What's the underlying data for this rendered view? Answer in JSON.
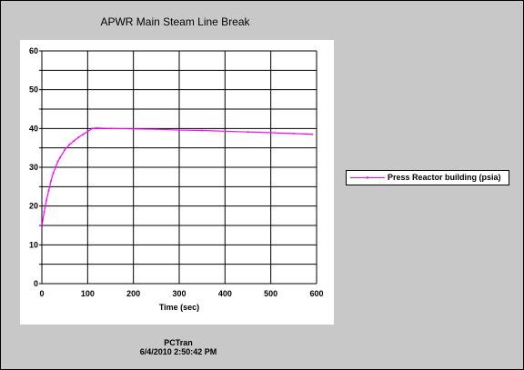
{
  "chart_data": {
    "type": "line",
    "title": "APWR Main Steam Line Break",
    "xlabel": "Time (sec)",
    "ylabel": "",
    "xlim": [
      0,
      600
    ],
    "ylim": [
      0,
      60
    ],
    "x_ticks": [
      "0",
      "100",
      "200",
      "300",
      "400",
      "500",
      "600"
    ],
    "y_ticks": [
      "0",
      "10",
      "20",
      "30",
      "40",
      "50",
      "60"
    ],
    "grid": true,
    "legend_position": "right",
    "series": [
      {
        "name": "Press Reactor building (psia)",
        "color": "#ff00ff",
        "x": [
          0,
          5,
          10,
          15,
          20,
          25,
          30,
          35,
          40,
          50,
          60,
          70,
          80,
          90,
          100,
          110,
          120,
          150,
          200,
          250,
          300,
          350,
          400,
          450,
          500,
          550,
          590
        ],
        "y": [
          14.7,
          18.5,
          21.5,
          24.0,
          26.5,
          28.5,
          30.0,
          31.5,
          32.5,
          34.5,
          35.8,
          36.8,
          37.7,
          38.5,
          39.2,
          40.0,
          40.1,
          40.0,
          39.9,
          39.8,
          39.6,
          39.5,
          39.3,
          39.1,
          38.9,
          38.7,
          38.5
        ]
      }
    ]
  },
  "footer": {
    "line1": "PCTran",
    "line2": "6/4/2010 2:50:42 PM"
  }
}
